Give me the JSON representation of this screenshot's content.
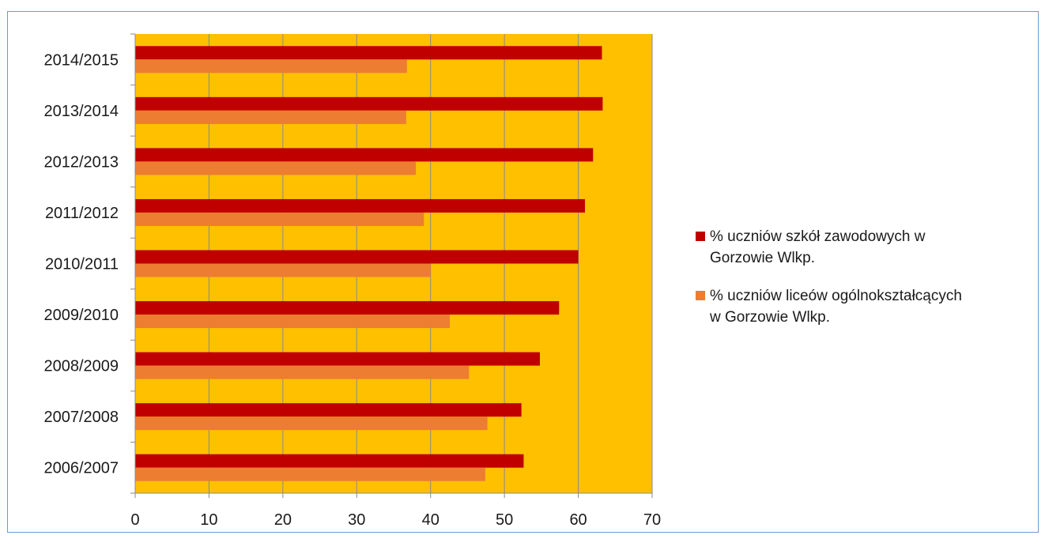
{
  "chart_data": {
    "type": "bar",
    "orientation": "horizontal",
    "categories": [
      "2006/2007",
      "2007/2008",
      "2008/2009",
      "2009/2010",
      "2010/2011",
      "2011/2012",
      "2012/2013",
      "2013/2014",
      "2014/2015"
    ],
    "series": [
      {
        "name": "% uczniów szkół zawodowych w\nGorzowie Wlkp.",
        "color": "#c00000",
        "values": [
          52.6,
          52.3,
          54.8,
          57.4,
          60.0,
          60.9,
          62.0,
          63.3,
          63.2
        ]
      },
      {
        "name": "% uczniów liceów ogólnokształcących\nw Gorzowie Wlkp.",
        "color": "#ed7d31",
        "values": [
          47.4,
          47.7,
          45.2,
          42.6,
          40.0,
          39.1,
          38.0,
          36.7,
          36.8
        ]
      }
    ],
    "xlim": [
      0,
      70
    ],
    "x_ticks": [
      "0",
      "10",
      "20",
      "30",
      "40",
      "50",
      "60",
      "70"
    ],
    "xlabel": "",
    "ylabel": "",
    "title": "",
    "grid": true,
    "legend": "right",
    "plot_background": "#ffc000",
    "gridline_color": "#8a8a8a"
  }
}
